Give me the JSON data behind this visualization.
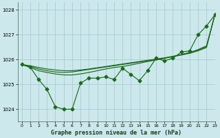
{
  "title": "Graphe pression niveau de la mer (hPa)",
  "background_color": "#cce8ec",
  "grid_color": "#aaccd4",
  "line_color": "#1a6b1a",
  "xlim": [
    -0.5,
    23
  ],
  "ylim": [
    1023.5,
    1028.3
  ],
  "yticks": [
    1024,
    1025,
    1026,
    1027,
    1028
  ],
  "xticks": [
    0,
    1,
    2,
    3,
    4,
    5,
    6,
    7,
    8,
    9,
    10,
    11,
    12,
    13,
    14,
    15,
    16,
    17,
    18,
    19,
    20,
    21,
    22,
    23
  ],
  "series_jagged": [
    1025.8,
    1025.7,
    1025.2,
    1024.8,
    1024.1,
    1024.0,
    1024.0,
    1025.05,
    1025.25,
    1025.25,
    1025.3,
    1025.2,
    1025.65,
    1025.4,
    1025.15,
    1025.55,
    1026.05,
    1025.95,
    1026.05,
    1026.3,
    1026.35,
    1027.0,
    1027.35,
    1027.8
  ],
  "series_smooth1": [
    1025.8,
    1025.68,
    1025.55,
    1025.48,
    1025.42,
    1025.38,
    1025.38,
    1025.42,
    1025.48,
    1025.55,
    1025.62,
    1025.68,
    1025.72,
    1025.78,
    1025.85,
    1025.92,
    1025.98,
    1026.05,
    1026.12,
    1026.18,
    1026.25,
    1026.35,
    1026.48,
    1027.8
  ],
  "series_smooth2": [
    1025.8,
    1025.72,
    1025.62,
    1025.55,
    1025.5,
    1025.48,
    1025.5,
    1025.55,
    1025.6,
    1025.65,
    1025.7,
    1025.75,
    1025.8,
    1025.85,
    1025.9,
    1025.95,
    1026.0,
    1026.05,
    1026.12,
    1026.2,
    1026.28,
    1026.4,
    1026.55,
    1027.8
  ],
  "series_smooth3": [
    1025.8,
    1025.75,
    1025.68,
    1025.62,
    1025.58,
    1025.55,
    1025.55,
    1025.58,
    1025.62,
    1025.67,
    1025.72,
    1025.77,
    1025.82,
    1025.87,
    1025.92,
    1025.97,
    1026.02,
    1026.07,
    1026.13,
    1026.2,
    1026.28,
    1026.38,
    1026.52,
    1027.8
  ]
}
